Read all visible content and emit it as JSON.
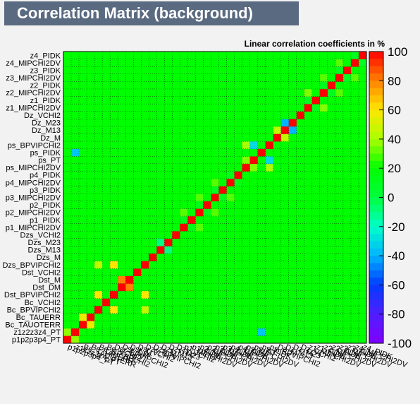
{
  "header": {
    "title": "Correlation Matrix (background)",
    "subtitle": "Linear correlation coefficients in %"
  },
  "colors": {
    "frame_bg": "#f2f2f2",
    "title_bg": "#5a6a80",
    "title_text": "#ffffff",
    "dominant_cell": "#00ff00"
  },
  "chart_data": {
    "type": "heatmap",
    "variables": [
      "p1p2p3p4_PT",
      "z1z2z3z4_PT",
      "Bc_TAUOTERR",
      "Bc_TAUERR",
      "Bc_BPVIPCHI2",
      "Bc_VCHI2",
      "Dst_BPVIPCHI2",
      "Dst_DM",
      "Dst_M",
      "Dst_VCHI2",
      "Dzs_BPVIPCHI2",
      "Dzs_M",
      "Dzs_M13",
      "Dzs_M23",
      "Dzs_VCHI2",
      "p1_MIPCHI2DV",
      "p1_PIDK",
      "p2_MIPCHI2DV",
      "p2_PIDK",
      "p3_MIPCHI2DV",
      "p3_PIDK",
      "p4_MIPCHI2DV",
      "p4_PIDK",
      "ps_MIPCHI2DV",
      "ps_PT",
      "ps_PIDK",
      "ps_BPVIPCHI2",
      "Dz_M",
      "Dz_M13",
      "Dz_M23",
      "Dz_VCHI2",
      "z1_MIPCHI2DV",
      "z1_PIDK",
      "z2_MIPCHI2DV",
      "z2_PIDK",
      "z3_MIPCHI2DV",
      "z3_PIDK",
      "z4_MIPCHI2DV",
      "z4_PIDK"
    ],
    "x_tick_labels": [
      "p1p2p3p4_PT",
      "z1z2z3z4_PT",
      "Bc_TAUOTERR",
      "Bc_TAUERR",
      "Bc_BPVIPCHI2",
      "Bc_VCHI2",
      "Dst_BPVIPCHI2",
      "Dst_DM",
      "Dst_M",
      "Dst_VCHI2",
      "Dzs_BPVIPCHI2",
      "Dzs_M",
      "Dzs_M13",
      "Dzs_M23",
      "Dzs_VCHI2",
      "p1_MIPCHI2DV",
      "p1_PIDK",
      "p2_MIPCHI2DV",
      "p2_PIDK",
      "p3_MIPCHI2DV",
      "p3_PIDK",
      "p4_MIPCHI2DV",
      "p4_PIDK",
      "ps_MIPCHI2DV",
      "ps_PT",
      "ps_PIDK",
      "ps_BPVIPCHI2",
      "Dz_M",
      "Dz_M13",
      "Dz_M23",
      "Dz_VCHI2",
      "z1_MIPCHI2DV",
      "z1_PIDK",
      "z2_MIPCHI2DV",
      "z2_PIDK",
      "z3_MIPCHI2DV",
      "z3_PIDK",
      "z4_MIPCHI2DV",
      "z4_PIDK"
    ],
    "y_tick_labels": [
      "p1p2p3p4_PT",
      "z1z2z3z4_PT",
      "Bc_TAUOTERR",
      "Bc_TAUERR",
      "Bc_BPVIPCHI2",
      "Bc_VCHI2",
      "Dst_BPVIPCHI2",
      "Dst_DM",
      "Dst_M",
      "Dst_VCHI2",
      "Dzs_BPVIPCHI2",
      "Dzs_M",
      "Dzs_M13",
      "Dzs_M23",
      "Dzs_VCHI2",
      "p1_MIPCHI2DV",
      "p1_PIDK",
      "p2_MIPCHI2DV",
      "p2_PIDK",
      "p3_MIPCHI2DV",
      "p3_PIDK",
      "p4_MIPCHI2DV",
      "p4_PIDK",
      "ps_MIPCHI2DV",
      "ps_PT",
      "ps_PIDK",
      "ps_BPVIPCHI2",
      "Dz_M",
      "Dz_M13",
      "Dz_M23",
      "Dz_VCHI2",
      "z1_MIPCHI2DV",
      "z1_PIDK",
      "z2_MIPCHI2DV",
      "z2_PIDK",
      "z3_MIPCHI2DV",
      "z3_PIDK",
      "z4_MIPCHI2DV",
      "z4_PIDK"
    ],
    "diagonal_value": 100,
    "strong_correlations": [
      {
        "a": 0,
        "b": 1,
        "value": 37
      },
      {
        "a": 4,
        "b": 6,
        "value": 60
      },
      {
        "a": 4,
        "b": 10,
        "value": 45
      },
      {
        "a": 6,
        "b": 10,
        "value": 60
      },
      {
        "a": 7,
        "b": 8,
        "value": 80
      },
      {
        "a": 12,
        "b": 13,
        "value": -10
      },
      {
        "a": 15,
        "b": 16,
        "value": 12
      },
      {
        "a": 17,
        "b": 18,
        "value": 12
      },
      {
        "a": 19,
        "b": 20,
        "value": 10
      },
      {
        "a": 21,
        "b": 22,
        "value": 12
      },
      {
        "a": 23,
        "b": 24,
        "value": 35
      },
      {
        "a": 23,
        "b": 26,
        "value": 40
      },
      {
        "a": 24,
        "b": 26,
        "value": -30
      },
      {
        "a": 27,
        "b": 28,
        "value": 45
      },
      {
        "a": 28,
        "b": 29,
        "value": -40
      },
      {
        "a": 31,
        "b": 32,
        "value": 10
      },
      {
        "a": 33,
        "b": 34,
        "value": 10
      },
      {
        "a": 35,
        "b": 36,
        "value": 10
      },
      {
        "a": 37,
        "b": 38,
        "value": 10
      },
      {
        "a": 31,
        "b": 33,
        "value": 35
      },
      {
        "a": 33,
        "b": 35,
        "value": 30
      },
      {
        "a": 35,
        "b": 37,
        "value": 30
      },
      {
        "a": 15,
        "b": 17,
        "value": 30
      },
      {
        "a": 17,
        "b": 19,
        "value": 30
      },
      {
        "a": 19,
        "b": 21,
        "value": 30
      },
      {
        "a": 2,
        "b": 3,
        "value": 55
      },
      {
        "a": 1,
        "b": 25,
        "value": -35
      }
    ],
    "zlim": [
      -100,
      100
    ],
    "colorbar_ticks": [
      100,
      80,
      60,
      40,
      20,
      0,
      -20,
      -40,
      -60,
      -80,
      -100
    ],
    "grid": true,
    "legend": "colorbar right"
  }
}
